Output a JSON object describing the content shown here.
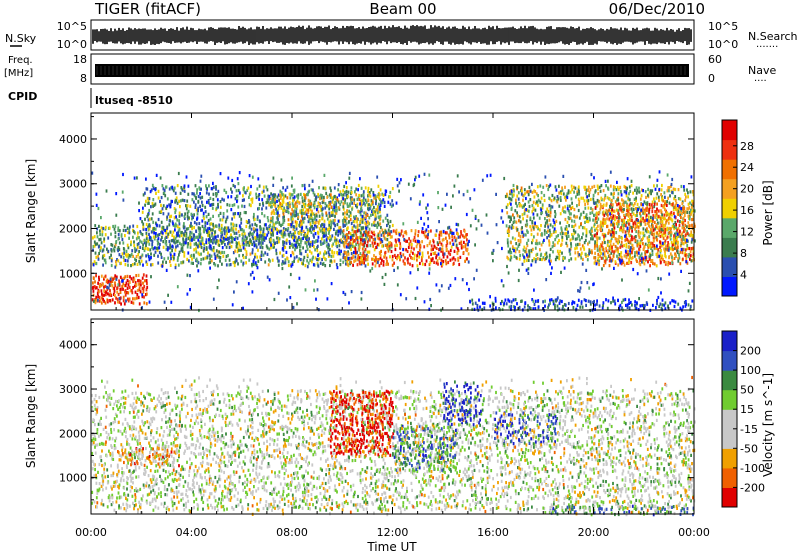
{
  "header": {
    "radar": "TIGER (fitACF)",
    "beam": "Beam 00",
    "date": "06/Dec/2010"
  },
  "sky_panel": {
    "left_label": "N.Sky",
    "right_label": "N.Search",
    "left_ticks": [
      "10^5",
      "10^0"
    ],
    "right_ticks": [
      "10^5",
      "10^0"
    ],
    "right_dots": "·······"
  },
  "freq_panel": {
    "label_line1": "Freq.",
    "label_line2": "[MHz]",
    "left_ticks": [
      "18",
      "8"
    ],
    "right_ticks": [
      "60",
      "0"
    ],
    "right_label": "Nave",
    "right_dots": "····"
  },
  "cpid": {
    "label": "CPID",
    "value": "ltuseq -8510"
  },
  "colors": {
    "power": [
      "#0018ff",
      "#2a4fb0",
      "#3a7c4e",
      "#5aa86a",
      "#f0d000",
      "#f4a020",
      "#f07000",
      "#ee3010",
      "#e00000"
    ],
    "velocity": [
      "#1a20c8",
      "#3050c0",
      "#3a8a40",
      "#70cc30",
      "#c8c8c8",
      "#c8c8c8",
      "#f0a000",
      "#f06000",
      "#e00000"
    ]
  },
  "chart_data": [
    {
      "type": "heatmap",
      "title": "Power",
      "xlabel": "",
      "ylabel": "Slant Range [km]",
      "x_ticks": [
        "00:00",
        "04:00",
        "08:00",
        "12:00",
        "16:00",
        "20:00",
        "00:00"
      ],
      "y_ticks": [
        "1000",
        "2000",
        "3000",
        "4000"
      ],
      "ylim": [
        180,
        4580
      ],
      "colorbar": {
        "label": "Power [dB]",
        "ticks": [
          "4",
          "8",
          "12",
          "16",
          "20",
          "24",
          "28"
        ],
        "range": [
          0,
          31
        ]
      },
      "regions": [
        {
          "x0": 0,
          "x1": 2.2,
          "y0": 350,
          "y1": 1000,
          "level": 0.85,
          "density": 0.8
        },
        {
          "x0": 0,
          "x1": 11,
          "y0": 1200,
          "y1": 2100,
          "level": 0.35,
          "density": 0.55
        },
        {
          "x0": 2,
          "x1": 12,
          "y0": 1600,
          "y1": 3000,
          "level": 0.3,
          "density": 0.45
        },
        {
          "x0": 7,
          "x1": 11.5,
          "y0": 2100,
          "y1": 2800,
          "level": 0.5,
          "density": 0.6
        },
        {
          "x0": 10,
          "x1": 15,
          "y0": 1200,
          "y1": 2000,
          "level": 0.75,
          "density": 0.6
        },
        {
          "x0": 16.5,
          "x1": 24,
          "y0": 1300,
          "y1": 3000,
          "level": 0.45,
          "density": 0.5
        },
        {
          "x0": 20,
          "x1": 24,
          "y0": 1200,
          "y1": 2600,
          "level": 0.7,
          "density": 0.55
        },
        {
          "x0": 15,
          "x1": 24,
          "y0": 200,
          "y1": 450,
          "level": 0.15,
          "density": 0.6
        },
        {
          "x0": 0,
          "x1": 24,
          "y0": 200,
          "y1": 3300,
          "level": 0.15,
          "density": 0.05
        }
      ]
    },
    {
      "type": "heatmap",
      "title": "Velocity",
      "xlabel": "Time UT",
      "ylabel": "Slant Range [km]",
      "x_ticks": [
        "00:00",
        "04:00",
        "08:00",
        "12:00",
        "16:00",
        "20:00",
        "00:00"
      ],
      "y_ticks": [
        "1000",
        "2000",
        "3000",
        "4000"
      ],
      "ylim": [
        180,
        4580
      ],
      "colorbar": {
        "label": "Velocity [m s^-1]",
        "ticks": [
          "200",
          "100",
          "50",
          "15",
          "-15",
          "-50",
          "-100",
          "-200"
        ],
        "range": [
          -250,
          250
        ]
      },
      "regions": [
        {
          "x0": 0,
          "x1": 24,
          "y0": 300,
          "y1": 3000,
          "level": 0.5,
          "density": 0.35
        },
        {
          "x0": 9.5,
          "x1": 12,
          "y0": 1500,
          "y1": 3000,
          "level": 0.95,
          "density": 0.55
        },
        {
          "x0": 12,
          "x1": 14.5,
          "y0": 1200,
          "y1": 2200,
          "level": 0.28,
          "density": 0.6
        },
        {
          "x0": 14,
          "x1": 15.5,
          "y0": 2200,
          "y1": 3200,
          "level": 0.08,
          "density": 0.4
        },
        {
          "x0": 16,
          "x1": 18.5,
          "y0": 1800,
          "y1": 2500,
          "level": 0.08,
          "density": 0.35
        },
        {
          "x0": 1,
          "x1": 3.5,
          "y0": 1300,
          "y1": 1700,
          "level": 0.72,
          "density": 0.5
        },
        {
          "x0": 18,
          "x1": 24,
          "y0": 200,
          "y1": 400,
          "level": 0.3,
          "density": 0.5
        },
        {
          "x0": 0,
          "x1": 24,
          "y0": 200,
          "y1": 3300,
          "level": 0.6,
          "density": 0.06
        }
      ]
    }
  ]
}
